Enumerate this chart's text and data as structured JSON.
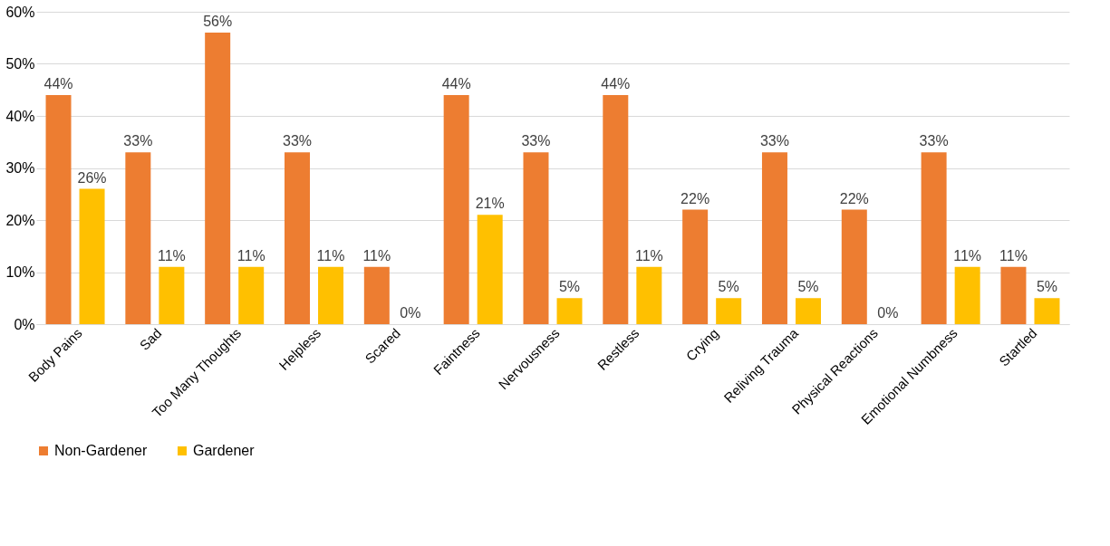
{
  "chart_data": {
    "type": "bar",
    "categories": [
      "Body Pains",
      "Sad",
      "Too Many Thoughts",
      "Helpless",
      "Scared",
      "Faintness",
      "Nervousness",
      "Restless",
      "Crying",
      "Reliving Trauma",
      "Physical Reactions",
      "Emotional Numbness",
      "Startled"
    ],
    "series": [
      {
        "name": "Non-Gardener",
        "color": "#ed7d31",
        "values": [
          44,
          33,
          56,
          33,
          11,
          44,
          33,
          44,
          22,
          33,
          22,
          33,
          11
        ],
        "value_labels": [
          "44%",
          "33%",
          "56%",
          "33%",
          "11%",
          "44%",
          "33%",
          "44%",
          "22%",
          "33%",
          "22%",
          "33%",
          "11%"
        ]
      },
      {
        "name": "Gardener",
        "color": "#ffc000",
        "values": [
          26,
          11,
          11,
          11,
          0,
          21,
          5,
          11,
          5,
          5,
          0,
          11,
          5
        ],
        "value_labels": [
          "26%",
          "11%",
          "11%",
          "11%",
          "0%",
          "21%",
          "5%",
          "11%",
          "5%",
          "5%",
          "0%",
          "11%",
          "5%"
        ]
      }
    ],
    "ylim": [
      0,
      60
    ],
    "yticks": [
      {
        "value": 0,
        "label": "0%"
      },
      {
        "value": 10,
        "label": "10%"
      },
      {
        "value": 20,
        "label": "20%"
      },
      {
        "value": 30,
        "label": "30%"
      },
      {
        "value": 40,
        "label": "40%"
      },
      {
        "value": 50,
        "label": "50%"
      },
      {
        "value": 60,
        "label": "60%"
      }
    ],
    "grid": "y",
    "legend": "bottom"
  }
}
